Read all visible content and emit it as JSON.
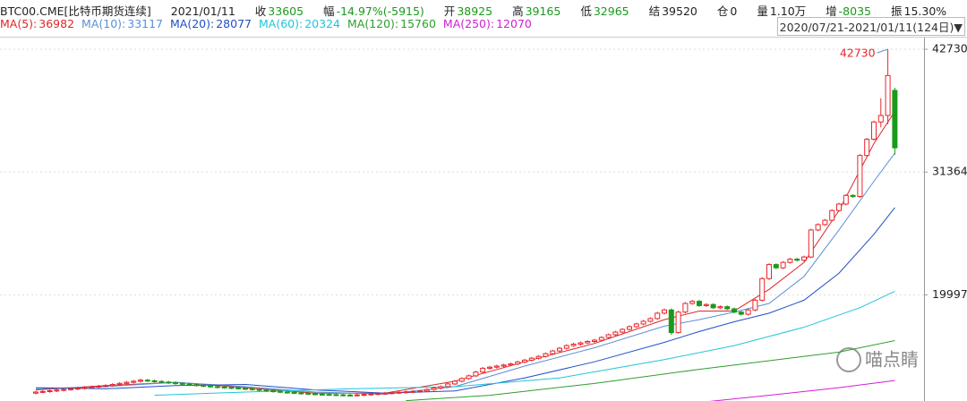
{
  "quote": [
    {
      "label": "BTC00.CME[比特币期货连续]"
    },
    {
      "label": "2021/01/11"
    },
    {
      "label": "收"
    },
    {
      "label": "幅",
      "value": "-14.97%(-5915)"
    },
    {
      "label": "开"
    },
    {
      "label": "高"
    },
    {
      "label": "低"
    },
    {
      "label": "结",
      "value": "39520"
    },
    {
      "label": "仓",
      "value": "0"
    },
    {
      "label": "量",
      "value": "1.10万"
    },
    {
      "label": "增",
      "value": "-8035"
    },
    {
      "label": "振",
      "value": "15.30%"
    }
  ],
  "range": "2020/07/21-2021/01/11(124日)",
  "range_arrow": "▼",
  "watermark": "喵点睛",
  "chart_data": {
    "type": "candlestick",
    "up_color": "#e8262a",
    "down_color": "#1a9a1a",
    "grid": true,
    "ylim": [
      10170,
      43810
    ],
    "yticks": [
      42730,
      31364,
      19997
    ],
    "values": [
      [
        10900,
        11120,
        10780,
        11000
      ],
      [
        11000,
        11170,
        10880,
        11050
      ],
      [
        11050,
        11240,
        10930,
        11120
      ],
      [
        11120,
        11300,
        11000,
        11180
      ],
      [
        11180,
        11360,
        11060,
        11240
      ],
      [
        11240,
        11420,
        11120,
        11300
      ],
      [
        11300,
        11480,
        11180,
        11360
      ],
      [
        11360,
        11540,
        11240,
        11420
      ],
      [
        11420,
        11600,
        11300,
        11480
      ],
      [
        11480,
        11660,
        11360,
        11540
      ],
      [
        11540,
        11720,
        11420,
        11600
      ],
      [
        11600,
        11820,
        11480,
        11700
      ],
      [
        11700,
        11920,
        11580,
        11800
      ],
      [
        11800,
        12020,
        11680,
        11900
      ],
      [
        11900,
        12120,
        11780,
        12000
      ],
      [
        12000,
        12220,
        11880,
        12100
      ],
      [
        12100,
        12220,
        11920,
        12040
      ],
      [
        12040,
        12160,
        11860,
        11980
      ],
      [
        11980,
        12100,
        11800,
        11920
      ],
      [
        11920,
        12040,
        11740,
        11860
      ],
      [
        11860,
        11980,
        11680,
        11800
      ],
      [
        11800,
        11920,
        11620,
        11740
      ],
      [
        11740,
        11860,
        11560,
        11680
      ],
      [
        11680,
        11800,
        11500,
        11620
      ],
      [
        11620,
        11740,
        11440,
        11560
      ],
      [
        11560,
        11680,
        11380,
        11500
      ],
      [
        11500,
        11620,
        11340,
        11460
      ],
      [
        11460,
        11580,
        11300,
        11420
      ],
      [
        11420,
        11540,
        11260,
        11380
      ],
      [
        11380,
        11500,
        11220,
        11340
      ],
      [
        11340,
        11460,
        11180,
        11300
      ],
      [
        11300,
        11420,
        11120,
        11240
      ],
      [
        11240,
        11360,
        11060,
        11180
      ],
      [
        11180,
        11300,
        11000,
        11120
      ],
      [
        11120,
        11240,
        10940,
        11060
      ],
      [
        11060,
        11180,
        10880,
        11000
      ],
      [
        11000,
        11120,
        10840,
        10960
      ],
      [
        10960,
        11080,
        10800,
        10920
      ],
      [
        10920,
        11040,
        10760,
        10880
      ],
      [
        10880,
        11000,
        10720,
        10840
      ],
      [
        10840,
        10960,
        10680,
        10800
      ],
      [
        10800,
        10920,
        10660,
        10780
      ],
      [
        10780,
        10900,
        10640,
        10760
      ],
      [
        10760,
        10880,
        10620,
        10740
      ],
      [
        10740,
        10860,
        10600,
        10720
      ],
      [
        10720,
        10840,
        10580,
        10700
      ],
      [
        10700,
        10860,
        10580,
        10740
      ],
      [
        10740,
        10900,
        10620,
        10780
      ],
      [
        10780,
        10940,
        10660,
        10820
      ],
      [
        10820,
        10980,
        10700,
        10860
      ],
      [
        10860,
        11020,
        10740,
        10900
      ],
      [
        10900,
        11060,
        10780,
        10940
      ],
      [
        10940,
        11100,
        10820,
        10980
      ],
      [
        10980,
        11140,
        10860,
        11020
      ],
      [
        11020,
        11180,
        10900,
        11060
      ],
      [
        11060,
        11220,
        10940,
        11100
      ],
      [
        11100,
        11350,
        10980,
        11230
      ],
      [
        11230,
        11490,
        11110,
        11370
      ],
      [
        11370,
        11620,
        11250,
        11500
      ],
      [
        11500,
        11870,
        11380,
        11750
      ],
      [
        11750,
        12120,
        11630,
        12000
      ],
      [
        12000,
        12370,
        11880,
        12250
      ],
      [
        12250,
        12620,
        12130,
        12500
      ],
      [
        12500,
        12970,
        12380,
        12850
      ],
      [
        12850,
        13320,
        12730,
        13200
      ],
      [
        13200,
        13420,
        13080,
        13300
      ],
      [
        13300,
        13520,
        13180,
        13400
      ],
      [
        13400,
        13620,
        13280,
        13500
      ],
      [
        13500,
        13720,
        13380,
        13600
      ],
      [
        13600,
        13900,
        13480,
        13780
      ],
      [
        13780,
        14070,
        13660,
        13950
      ],
      [
        13950,
        14250,
        13830,
        14130
      ],
      [
        14130,
        14420,
        14010,
        14300
      ],
      [
        14300,
        14670,
        14180,
        14550
      ],
      [
        14550,
        14920,
        14430,
        14800
      ],
      [
        14800,
        15170,
        14680,
        15050
      ],
      [
        15050,
        15420,
        14930,
        15300
      ],
      [
        15300,
        15550,
        15180,
        15430
      ],
      [
        15430,
        15670,
        15310,
        15550
      ],
      [
        15550,
        15800,
        15430,
        15680
      ],
      [
        15680,
        15920,
        15560,
        15800
      ],
      [
        15800,
        16170,
        15680,
        16050
      ],
      [
        16050,
        16420,
        15930,
        16300
      ],
      [
        16300,
        16670,
        16180,
        16550
      ],
      [
        16550,
        16920,
        16430,
        16800
      ],
      [
        16800,
        17170,
        16680,
        17050
      ],
      [
        17050,
        17420,
        16930,
        17300
      ],
      [
        17300,
        17670,
        17180,
        17550
      ],
      [
        17550,
        17920,
        17430,
        17800
      ],
      [
        17800,
        18420,
        17680,
        18300
      ],
      [
        18300,
        18720,
        18180,
        18600
      ],
      [
        18600,
        18750,
        16300,
        16500
      ],
      [
        16500,
        18520,
        16400,
        18400
      ],
      [
        18400,
        19320,
        18280,
        19200
      ],
      [
        19200,
        19520,
        19080,
        19400
      ],
      [
        19400,
        19520,
        18880,
        19000
      ],
      [
        19000,
        19220,
        18880,
        19100
      ],
      [
        19100,
        19220,
        18680,
        18800
      ],
      [
        18800,
        19020,
        18680,
        18900
      ],
      [
        18900,
        19020,
        18580,
        18700
      ],
      [
        18700,
        18820,
        18280,
        18400
      ],
      [
        18400,
        18520,
        18080,
        18200
      ],
      [
        18200,
        18720,
        18080,
        18600
      ],
      [
        18600,
        19620,
        18480,
        19500
      ],
      [
        19500,
        21620,
        19380,
        21500
      ],
      [
        21500,
        22920,
        21380,
        22800
      ],
      [
        22800,
        22920,
        22380,
        22500
      ],
      [
        22500,
        23120,
        22380,
        23000
      ],
      [
        23000,
        23420,
        22880,
        23300
      ],
      [
        23300,
        23420,
        23080,
        23200
      ],
      [
        23200,
        23620,
        23080,
        23500
      ],
      [
        23500,
        26120,
        23380,
        26000
      ],
      [
        26000,
        26620,
        25880,
        26500
      ],
      [
        26500,
        27020,
        26380,
        26900
      ],
      [
        26900,
        27920,
        26780,
        27800
      ],
      [
        27800,
        28520,
        27680,
        28400
      ],
      [
        28400,
        29320,
        28280,
        29200
      ],
      [
        29200,
        29320,
        28980,
        29100
      ],
      [
        29100,
        33020,
        28980,
        32900
      ],
      [
        32900,
        34520,
        32780,
        34400
      ],
      [
        34400,
        36120,
        34280,
        36000
      ],
      [
        36000,
        38200,
        35500,
        36600
      ],
      [
        36600,
        42730,
        35800,
        40300
      ],
      [
        38925,
        39165,
        32965,
        33605
      ]
    ],
    "series": [
      {
        "name": "MA(5):",
        "color": "#e0262a",
        "x": [
          0,
          10,
          20,
          30,
          40,
          50,
          60,
          70,
          80,
          90,
          95,
          100,
          105,
          110,
          115,
          120,
          123
        ],
        "values": [
          11200,
          11600,
          11900,
          11400,
          10900,
          10900,
          12000,
          13800,
          15500,
          17700,
          18500,
          18500,
          20500,
          23000,
          27800,
          34000,
          36982
        ]
      },
      {
        "name": "MA(10):",
        "color": "#5b8fd6",
        "x": [
          0,
          10,
          20,
          30,
          40,
          50,
          60,
          70,
          80,
          90,
          95,
          100,
          105,
          110,
          115,
          120,
          123
        ],
        "values": [
          11300,
          11500,
          11900,
          11500,
          11000,
          10800,
          11500,
          13400,
          15100,
          17100,
          17700,
          18400,
          19200,
          21700,
          26000,
          30500,
          33117
        ]
      },
      {
        "name": "MA(20):",
        "color": "#1f4fc8",
        "x": [
          0,
          10,
          20,
          30,
          40,
          50,
          60,
          70,
          80,
          90,
          95,
          100,
          105,
          110,
          115,
          120,
          123
        ],
        "values": [
          11400,
          11300,
          11600,
          11700,
          11200,
          10900,
          11100,
          12300,
          13800,
          15600,
          16600,
          17500,
          18300,
          19500,
          22000,
          25600,
          28077
        ]
      },
      {
        "name": "MA(60):",
        "color": "#22c4d8",
        "x": [
          17,
          30,
          45,
          60,
          75,
          90,
          100,
          110,
          118,
          123
        ],
        "values": [
          10700,
          11000,
          11300,
          11500,
          12300,
          14000,
          15300,
          17000,
          18800,
          20324
        ]
      },
      {
        "name": "MA(120):",
        "color": "#2e9e2e",
        "x": [
          53,
          65,
          80,
          95,
          105,
          115,
          123
        ],
        "values": [
          10200,
          10700,
          11800,
          13100,
          13900,
          14700,
          15760
        ]
      },
      {
        "name": "MA(250):",
        "color": "#d21fd2",
        "x": [
          96,
          105,
          115,
          123
        ],
        "values": [
          10100,
          10700,
          11400,
          12070
        ]
      }
    ]
  }
}
